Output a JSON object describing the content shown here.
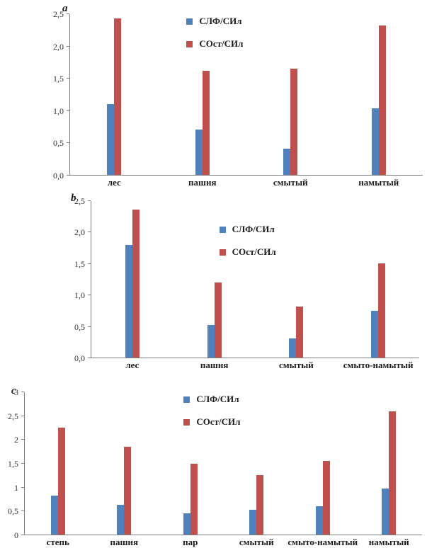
{
  "page": {
    "background": "#ffffff"
  },
  "chart_data": [
    {
      "panel_label": "a",
      "type": "bar",
      "categories": [
        "лес",
        "пашня",
        "смытый",
        "намытый"
      ],
      "series": [
        {
          "name": "СЛФ/СИл",
          "color": "#4f81bd",
          "values": [
            1.1,
            0.71,
            0.41,
            1.03
          ]
        },
        {
          "name": "СОст/СИл",
          "color": "#c0504d",
          "values": [
            2.43,
            1.62,
            1.65,
            2.32
          ]
        }
      ],
      "title": "",
      "xlabel": "",
      "ylabel": "",
      "ylim": [
        0,
        2.5
      ],
      "ytick_step": 0.5,
      "ytick_labels": [
        "0,0",
        "0,5",
        "1,0",
        "1,5",
        "2,0",
        "2,5"
      ],
      "grid": false,
      "legend_position": "inside-top-center"
    },
    {
      "panel_label": "b",
      "type": "bar",
      "categories": [
        "лес",
        "пашня",
        "смытый",
        "смыто-намытый"
      ],
      "series": [
        {
          "name": "СЛФ/СИл",
          "color": "#4f81bd",
          "values": [
            1.8,
            0.52,
            0.3,
            0.75
          ]
        },
        {
          "name": "СОст/СИл",
          "color": "#c0504d",
          "values": [
            2.37,
            1.2,
            0.82,
            1.5
          ]
        }
      ],
      "title": "",
      "xlabel": "",
      "ylabel": "",
      "ylim": [
        0,
        2.5
      ],
      "ytick_step": 0.5,
      "ytick_labels": [
        "0,0",
        "0,5",
        "1,0",
        "1,5",
        "2,0",
        "2,5"
      ],
      "grid": false,
      "legend_position": "inside-top-center"
    },
    {
      "panel_label": "c",
      "type": "bar",
      "categories": [
        "степь",
        "пашня",
        "пар",
        "смытый",
        "смыто-намытый",
        "намытый"
      ],
      "series": [
        {
          "name": "СЛФ/СИл",
          "color": "#4f81bd",
          "values": [
            0.82,
            0.63,
            0.45,
            0.53,
            0.6,
            0.97
          ]
        },
        {
          "name": "СОст/СИл",
          "color": "#c0504d",
          "values": [
            2.25,
            1.85,
            1.5,
            1.25,
            1.55,
            2.6
          ]
        }
      ],
      "title": "",
      "xlabel": "",
      "ylabel": "",
      "ylim": [
        0,
        3
      ],
      "ytick_step": 0.5,
      "ytick_labels": [
        "0",
        "0,5",
        "1",
        "1,5",
        "2",
        "2,5",
        "3"
      ],
      "grid": false,
      "legend_position": "inside-top-center"
    }
  ]
}
